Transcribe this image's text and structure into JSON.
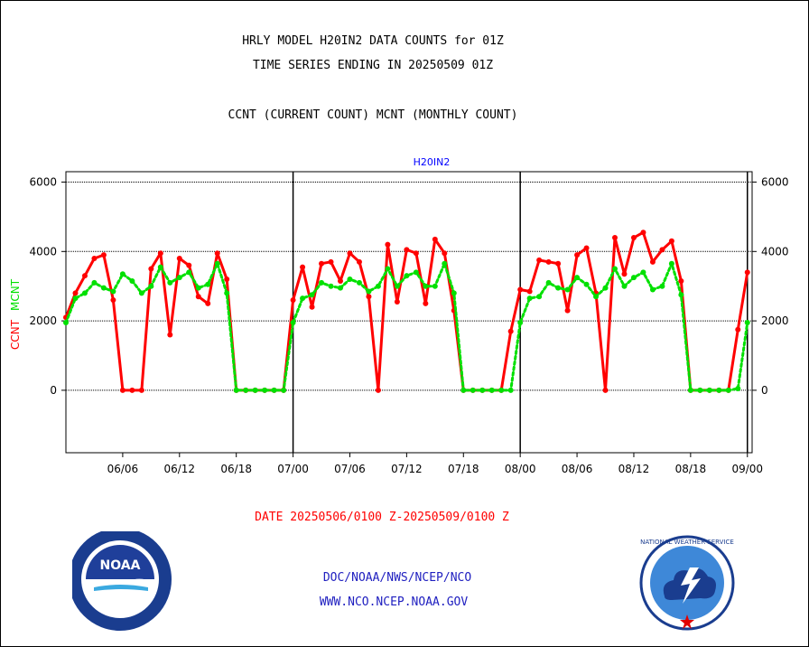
{
  "header": {
    "title_line1": "HRLY MODEL H20IN2 DATA COUNTS for 01Z",
    "title_line2": "TIME SERIES ENDING IN 20250509 01Z",
    "subtitle": "CCNT (CURRENT COUNT) MCNT (MONTHLY COUNT)"
  },
  "footer": {
    "date_range": "DATE 20250506/0100 Z-20250509/0100 Z",
    "org": "DOC/NOAA/NWS/NCEP/NCO",
    "url": "WWW.NCO.NCEP.NOAA.GOV"
  },
  "logos": {
    "left": {
      "icon": "noaa-logo",
      "text": "NOAA"
    },
    "right": {
      "icon": "nws-logo",
      "text": "NATIONAL WEATHER SERVICE"
    }
  },
  "colors": {
    "ccnt": "#ff0000",
    "mcnt": "#00e000",
    "label": "#0000ff",
    "grid": "#000000"
  },
  "chart_data": {
    "type": "line",
    "title": "H20IN2",
    "ylabel_ccnt": "CCNT",
    "ylabel_mcnt": "MCNT",
    "ylim": [
      -1800,
      6300
    ],
    "yticks": [
      0,
      2000,
      4000,
      6000
    ],
    "xlim": [
      0,
      72.5
    ],
    "xticks": [
      {
        "label": "06/06",
        "x": 6
      },
      {
        "label": "06/12",
        "x": 12
      },
      {
        "label": "06/18",
        "x": 18
      },
      {
        "label": "07/00",
        "x": 24
      },
      {
        "label": "07/06",
        "x": 30
      },
      {
        "label": "07/12",
        "x": 36
      },
      {
        "label": "07/18",
        "x": 42
      },
      {
        "label": "08/00",
        "x": 48
      },
      {
        "label": "08/06",
        "x": 54
      },
      {
        "label": "08/12",
        "x": 60
      },
      {
        "label": "08/18",
        "x": 66
      },
      {
        "label": "09/00",
        "x": 72
      }
    ],
    "day_lines": [
      24,
      48,
      72
    ],
    "grid": true,
    "series": [
      {
        "name": "CCNT",
        "color": "#ff0000",
        "style": "solid",
        "values": [
          2100,
          2800,
          3300,
          3800,
          3900,
          2600,
          0,
          0,
          0,
          3500,
          3950,
          1600,
          3800,
          3600,
          2700,
          2500,
          3950,
          3200,
          0,
          0,
          0,
          0,
          0,
          0,
          2600,
          3550,
          2400,
          3650,
          3700,
          3150,
          3950,
          3700,
          2700,
          0,
          4200,
          2550,
          4050,
          3950,
          2500,
          4350,
          3950,
          2300,
          0,
          0,
          0,
          0,
          0,
          1700,
          2900,
          2850,
          3750,
          3700,
          3650,
          2300,
          3900,
          4100,
          2800,
          0,
          4400,
          3350,
          4400,
          4550,
          3700,
          4050,
          4300,
          3150,
          0,
          0,
          0,
          0,
          0,
          1750,
          3400
        ]
      },
      {
        "name": "MCNT",
        "color": "#00e000",
        "style": "dotted",
        "values": [
          1950,
          2650,
          2800,
          3100,
          2950,
          2850,
          3350,
          3150,
          2800,
          3000,
          3550,
          3100,
          3250,
          3400,
          2950,
          3050,
          3650,
          2800,
          0,
          0,
          0,
          0,
          0,
          0,
          1950,
          2650,
          2750,
          3100,
          3000,
          2950,
          3200,
          3100,
          2850,
          3000,
          3500,
          3000,
          3300,
          3400,
          3000,
          3000,
          3650,
          2800,
          0,
          0,
          0,
          0,
          0,
          0,
          1950,
          2650,
          2700,
          3100,
          2950,
          2900,
          3250,
          3050,
          2700,
          2950,
          3500,
          3000,
          3250,
          3400,
          2900,
          3000,
          3650,
          2750,
          0,
          0,
          0,
          0,
          0,
          50,
          1950
        ]
      }
    ]
  }
}
